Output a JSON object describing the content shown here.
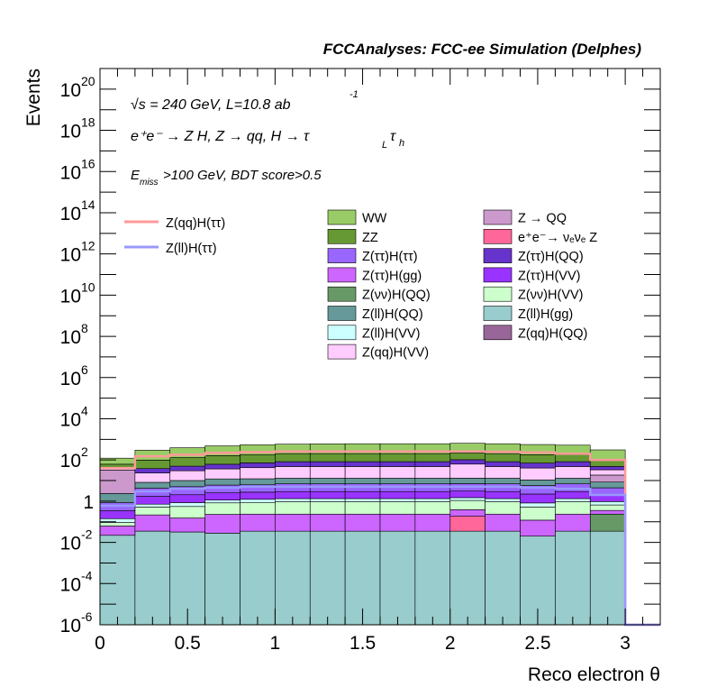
{
  "header": {
    "title": "FCCAnalyses: FCC-ee Simulation (Delphes)"
  },
  "annotations": {
    "line1": "√s = 240 GeV, L=10.8 ab",
    "line1_sup": "-1",
    "line2": "e⁺e⁻ → Z H, Z → qq, H → τ",
    "line2_sub_L": "L",
    "line2_tau": "τ",
    "line2_sub_h": "h",
    "line3_E": "E",
    "line3_sub": "miss",
    "line3_rest": ">100 GeV, BDT score>0.5"
  },
  "colors": {
    "WW": "#99cc66",
    "ZZ": "#669933",
    "Z_QQ": "#cc99cc",
    "eeZ": "#ff6699",
    "ZtautauHtautau": "#9966ff",
    "ZtautauHQQ": "#6633cc",
    "ZtautauHgg": "#cc66ff",
    "ZtautauHVV": "#9933ff",
    "ZvvHQQ": "#669966",
    "ZvvHVV": "#ccffcc",
    "ZllHQQ": "#669999",
    "ZllHgg": "#99cccc",
    "ZllHVV": "#ccffff",
    "ZqqHQQ": "#996699",
    "ZqqHVV": "#ffccff",
    "sig_qq": "#ff9999",
    "sig_ll": "#9999ff"
  },
  "chart_data": {
    "type": "bar",
    "stacked": true,
    "log_y": true,
    "xlabel": "Reco electron θ",
    "ylabel": "Events",
    "xlim": [
      0,
      3.2
    ],
    "ylim": [
      1e-06,
      1e+21
    ],
    "x_ticks": [
      0,
      0.5,
      1,
      1.5,
      2,
      2.5,
      3
    ],
    "x_tick_labels": [
      "0",
      "0.5",
      "1",
      "1.5",
      "2",
      "2.5",
      "3"
    ],
    "y_tick_exponents": [
      -6,
      -4,
      -2,
      0,
      2,
      4,
      6,
      8,
      10,
      12,
      14,
      16,
      18,
      20
    ],
    "bin_edges": [
      0,
      0.2,
      0.4,
      0.6,
      0.8,
      1.0,
      1.2,
      1.4,
      1.6,
      1.8,
      2.0,
      2.2,
      2.4,
      2.6,
      2.8,
      3.0
    ],
    "series": [
      {
        "name": "Z(ll)H(gg)",
        "key": "ZllHgg",
        "values": [
          0.022,
          0.035,
          0.032,
          0.028,
          0.035,
          0.035,
          0.035,
          0.035,
          0.035,
          0.035,
          0.035,
          0.035,
          0.02,
          0.035,
          0.035
        ]
      },
      {
        "name": "Z(qq)H(QQ)",
        "key": "ZqqHQQ",
        "values": [
          0,
          0.00025,
          0,
          0,
          0,
          0,
          0,
          0,
          0,
          0,
          0,
          0,
          0,
          0,
          0
        ]
      },
      {
        "name": "e⁺e⁻ → νₑνₑ Z",
        "key": "eeZ",
        "values": [
          0,
          0,
          0,
          0,
          0,
          0,
          0,
          0,
          0,
          0,
          0.15,
          0,
          0,
          0,
          0
        ]
      },
      {
        "name": "Z(νν)H(QQ)",
        "key": "ZvvHQQ",
        "values": [
          0,
          0,
          0,
          0,
          0,
          0,
          0,
          0,
          0,
          0,
          0,
          0,
          0,
          0,
          0.2
        ]
      },
      {
        "name": "Z(ττ)H(gg)",
        "key": "ZtautauHgg",
        "values": [
          0.04,
          0.18,
          0.12,
          0.2,
          0.2,
          0.2,
          0.2,
          0.2,
          0.2,
          0.2,
          0.2,
          0.2,
          0.1,
          0.2,
          0.12
        ]
      },
      {
        "name": "Z(νν)H(VV)",
        "key": "ZvvHVV",
        "values": [
          0.03,
          0.3,
          0.4,
          0.6,
          0.6,
          0.7,
          0.7,
          0.7,
          0.7,
          0.7,
          0.7,
          0.7,
          0.4,
          0.7,
          0.3
        ]
      },
      {
        "name": "Z(ll)H(VV)",
        "key": "ZllHVV",
        "values": [
          0.05,
          0.2,
          0.3,
          0.3,
          0.4,
          0.4,
          0.4,
          0.4,
          0.4,
          0.4,
          0.4,
          0.4,
          0.3,
          0.4,
          0.3
        ]
      },
      {
        "name": "Z(ττ)H(VV)",
        "key": "ZtautauHVV",
        "values": [
          0.2,
          1.0,
          1.2,
          1.4,
          1.5,
          1.6,
          1.6,
          1.6,
          1.6,
          1.6,
          1.6,
          1.6,
          1.4,
          1.6,
          1.0
        ]
      },
      {
        "name": "Z(ττ)H(ττ)",
        "key": "ZtautauHtautau",
        "values": [
          0.5,
          2.5,
          3,
          3.5,
          3.5,
          4,
          4,
          4,
          4,
          4,
          4,
          4,
          3.5,
          4,
          2.5
        ]
      },
      {
        "name": "Z(ll)H(QQ)",
        "key": "ZllHQQ",
        "values": [
          1.5,
          4,
          5,
          6,
          6,
          6,
          6,
          6,
          6,
          6,
          6,
          6,
          5,
          6,
          4
        ]
      },
      {
        "name": "Z → QQ",
        "key": "Z_QQ",
        "values": [
          30,
          0,
          0,
          0,
          0,
          0,
          0,
          0,
          0,
          0,
          0,
          0,
          0,
          0,
          10
        ]
      },
      {
        "name": "Z(qq)H(VV)",
        "key": "ZqqHVV",
        "values": [
          5,
          15,
          20,
          25,
          30,
          35,
          35,
          35,
          35,
          35,
          50,
          35,
          30,
          35,
          15
        ]
      },
      {
        "name": "Z(ττ)H(QQ)",
        "key": "ZtautauHQQ",
        "values": [
          5,
          15,
          20,
          25,
          30,
          35,
          35,
          35,
          35,
          35,
          40,
          35,
          30,
          35,
          15
        ]
      },
      {
        "name": "ZZ",
        "key": "ZZ",
        "values": [
          20,
          60,
          80,
          100,
          110,
          120,
          120,
          120,
          120,
          120,
          120,
          120,
          110,
          100,
          60
        ]
      },
      {
        "name": "WW",
        "key": "WW",
        "values": [
          60,
          200,
          260,
          320,
          360,
          380,
          400,
          410,
          410,
          410,
          420,
          410,
          380,
          340,
          200
        ]
      }
    ],
    "lines": [
      {
        "name": "Z(qq)H(ττ)",
        "key": "sig_qq",
        "values": [
          40,
          150,
          180,
          220,
          240,
          260,
          260,
          260,
          260,
          260,
          260,
          250,
          230,
          200,
          100
        ]
      },
      {
        "name": "Z(ll)H(ττ)",
        "key": "sig_ll",
        "values": [
          0.6,
          3,
          4,
          4.5,
          5,
          5,
          5,
          5,
          5,
          5,
          5,
          5,
          4.5,
          4,
          2
        ]
      }
    ],
    "legend_left": [
      "Z(qq)H(ττ)",
      "Z(ll)H(ττ)"
    ],
    "legend_col1": [
      "WW",
      "ZZ",
      "Z(ττ)H(ττ)",
      "Z(ττ)H(gg)",
      "Z(νν)H(QQ)",
      "Z(ll)H(QQ)",
      "Z(ll)H(VV)",
      "Z(qq)H(VV)"
    ],
    "legend_col1_keys": [
      "WW",
      "ZZ",
      "ZtautauHtautau",
      "ZtautauHgg",
      "ZvvHQQ",
      "ZllHQQ",
      "ZllHVV",
      "ZqqHVV"
    ],
    "legend_col2": [
      "Z → QQ",
      "e⁺e⁻→ νₑνₑ Z",
      "Z(ττ)H(QQ)",
      "Z(ττ)H(VV)",
      "Z(νν)H(VV)",
      "Z(ll)H(gg)",
      "Z(qq)H(QQ)"
    ],
    "legend_col2_keys": [
      "Z_QQ",
      "eeZ",
      "ZtautauHQQ",
      "ZtautauHVV",
      "ZvvHVV",
      "ZllHgg",
      "ZqqHQQ"
    ]
  }
}
